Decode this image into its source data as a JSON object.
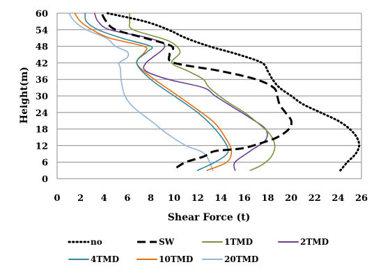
{
  "chart_data": {
    "type": "line",
    "xlabel": "Shear Force (t)",
    "ylabel": "Height(m)",
    "xlim": [
      0,
      26
    ],
    "ylim": [
      0,
      60
    ],
    "x_ticks": [
      "0",
      "2",
      "4",
      "6",
      "8",
      "10",
      "12",
      "14",
      "16",
      "18",
      "20",
      "22",
      "24",
      "26"
    ],
    "y_ticks": [
      "0",
      "6",
      "12",
      "18",
      "24",
      "30",
      "36",
      "42",
      "48",
      "54",
      "60"
    ],
    "grid": "horizontal",
    "legend_position": "bottom",
    "series": [
      {
        "name": "no",
        "color": "#000000",
        "dash": "dotted",
        "points": [
          [
            24.2,
            3
          ],
          [
            24.8,
            6
          ],
          [
            25.5,
            9
          ],
          [
            25.8,
            12
          ],
          [
            25.6,
            15
          ],
          [
            25,
            18
          ],
          [
            24,
            21
          ],
          [
            22.5,
            24
          ],
          [
            21,
            27
          ],
          [
            20,
            30
          ],
          [
            19,
            33
          ],
          [
            18.4,
            36
          ],
          [
            18,
            39
          ],
          [
            17.5,
            42
          ],
          [
            15.5,
            45
          ],
          [
            13,
            48
          ],
          [
            11,
            51
          ],
          [
            9.5,
            54
          ],
          [
            7.5,
            57
          ],
          [
            4.3,
            60
          ]
        ]
      },
      {
        "name": "SW",
        "color": "#000000",
        "dash": "dashed",
        "points": [
          [
            10.2,
            4
          ],
          [
            11,
            6
          ],
          [
            12.5,
            8
          ],
          [
            13.5,
            10
          ],
          [
            15.8,
            11
          ],
          [
            17.5,
            13
          ],
          [
            18.8,
            15
          ],
          [
            19.8,
            18
          ],
          [
            20,
            21
          ],
          [
            19.5,
            24
          ],
          [
            19,
            27
          ],
          [
            18.8,
            30
          ],
          [
            18.5,
            33
          ],
          [
            17,
            36
          ],
          [
            14,
            39
          ],
          [
            10,
            42
          ],
          [
            9.6,
            45
          ],
          [
            9.8,
            48
          ],
          [
            7.5,
            51
          ],
          [
            5,
            54
          ],
          [
            4.2,
            57
          ],
          [
            3.8,
            60
          ]
        ]
      },
      {
        "name": "1TMD",
        "color": "#77933C",
        "dash": "solid",
        "points": [
          [
            16.5,
            3
          ],
          [
            17.5,
            5
          ],
          [
            18.3,
            8
          ],
          [
            18.6,
            12
          ],
          [
            18.2,
            16
          ],
          [
            17.2,
            20
          ],
          [
            16,
            24
          ],
          [
            14.5,
            28
          ],
          [
            13,
            33
          ],
          [
            12.5,
            36
          ],
          [
            11.2,
            39
          ],
          [
            9.8,
            42
          ],
          [
            10.5,
            46
          ],
          [
            9.5,
            50
          ],
          [
            6.5,
            54
          ],
          [
            6.2,
            57
          ],
          [
            6.2,
            60
          ]
        ]
      },
      {
        "name": "2TMD",
        "color": "#6B3D8F",
        "dash": "solid",
        "points": [
          [
            15.2,
            3
          ],
          [
            15.2,
            6
          ],
          [
            16.5,
            10
          ],
          [
            17.8,
            14
          ],
          [
            17.8,
            18
          ],
          [
            16.5,
            22
          ],
          [
            15,
            26
          ],
          [
            13.5,
            30
          ],
          [
            12.5,
            33
          ],
          [
            9.5,
            36
          ],
          [
            7.6,
            39
          ],
          [
            7.6,
            42
          ],
          [
            9.2,
            48
          ],
          [
            7.8,
            51
          ],
          [
            4.5,
            54
          ],
          [
            3.5,
            57
          ],
          [
            3.2,
            60
          ]
        ]
      },
      {
        "name": "4TMD",
        "color": "#31859C",
        "dash": "solid",
        "points": [
          [
            12,
            3
          ],
          [
            13.5,
            6
          ],
          [
            14.5,
            9
          ],
          [
            14.5,
            12
          ],
          [
            13.5,
            18
          ],
          [
            12,
            24
          ],
          [
            10,
            30
          ],
          [
            8,
            36
          ],
          [
            6.8,
            42
          ],
          [
            7.7,
            46
          ],
          [
            8,
            48
          ],
          [
            5.5,
            51
          ],
          [
            3.5,
            54
          ],
          [
            2.5,
            57
          ],
          [
            2.4,
            60
          ]
        ]
      },
      {
        "name": "10TMD",
        "color": "#E46C0A",
        "dash": "solid",
        "points": [
          [
            12.8,
            3
          ],
          [
            14.5,
            6
          ],
          [
            14.9,
            10
          ],
          [
            14.5,
            14
          ],
          [
            13.5,
            20
          ],
          [
            12,
            25
          ],
          [
            10,
            31
          ],
          [
            8,
            37
          ],
          [
            6.8,
            42
          ],
          [
            7.5,
            46
          ],
          [
            7.4,
            48
          ],
          [
            4.5,
            51
          ],
          [
            3,
            54
          ],
          [
            2,
            57
          ],
          [
            1.5,
            60
          ]
        ]
      },
      {
        "name": "20TMD",
        "color": "#95B3D7",
        "dash": "solid",
        "points": [
          [
            13.3,
            3
          ],
          [
            12.6,
            9
          ],
          [
            11,
            12
          ],
          [
            9.5,
            16
          ],
          [
            8,
            21
          ],
          [
            6.5,
            26
          ],
          [
            5.8,
            30
          ],
          [
            5.5,
            35
          ],
          [
            5.4,
            40
          ],
          [
            5.3,
            42
          ],
          [
            6,
            44
          ],
          [
            6,
            46
          ],
          [
            5,
            48
          ],
          [
            4.2,
            51
          ],
          [
            2.5,
            54
          ],
          [
            1.5,
            57
          ],
          [
            1,
            60
          ]
        ]
      }
    ]
  }
}
